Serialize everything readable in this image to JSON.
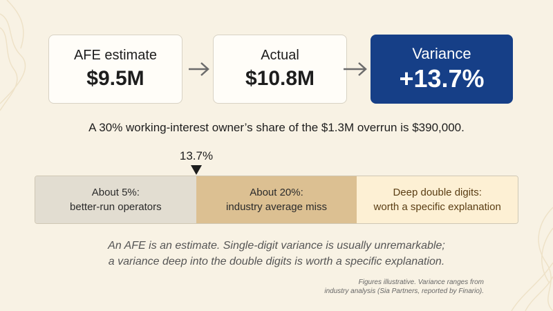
{
  "cards": [
    {
      "label": "AFE estimate",
      "value": "$9.5M"
    },
    {
      "label": "Actual",
      "value": "$10.8M"
    },
    {
      "label": "Variance",
      "value": "+13.7%"
    }
  ],
  "summary": "A 30% working-interest owner’s share of the $1.3M overrun is $390,000.",
  "marker": {
    "label": "13.7%",
    "variance_percent": 13.7
  },
  "scale": {
    "segments": [
      {
        "line1": "About 5%:",
        "line2": "better-run operators",
        "color": "#e2ddd1"
      },
      {
        "line1": "About 20%:",
        "line2": "industry average miss",
        "color": "#dcc092"
      },
      {
        "line1": "Deep double digits:",
        "line2": "worth a specific explanation",
        "color": "#fdf0d4"
      }
    ]
  },
  "note": {
    "line1": "An AFE is an estimate. Single-digit variance is usually unremarkable;",
    "line2": "a variance deep into the double digits is worth a specific explanation."
  },
  "source": {
    "line1": "Figures illustrative. Variance ranges from",
    "line2": "industry analysis (Sia Partners, reported by Finario)."
  },
  "colors": {
    "background": "#f8f2e4",
    "accent": "#163f87",
    "arrow": "#6b6b6b"
  }
}
